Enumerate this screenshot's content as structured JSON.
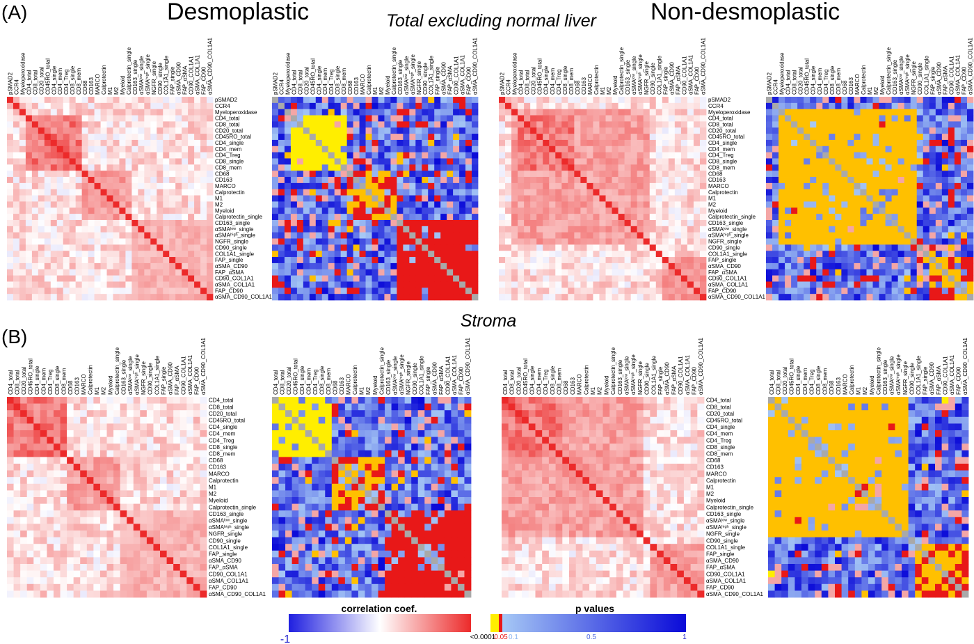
{
  "panels": {
    "a_label": "(A)",
    "b_label": "(B)",
    "desmoplastic_title": "Desmoplastic",
    "nondesmoplastic_title": "Non-desmoplastic",
    "a_subtitle": "Total excluding normal liver",
    "b_subtitle": "Stroma"
  },
  "colors": {
    "corr_negative": "#1f1fe0",
    "corr_zero": "#ffffff",
    "corr_positive": "#ec2a2a",
    "p_min": "#ffee00",
    "p_mid": "#e81818",
    "p_low": "#a6c8f5",
    "p_max": "#0a0ad8",
    "diagonal_p": "#a9a9a9"
  },
  "legend": {
    "corr_title": "correlation coef.",
    "corr_min_label": "-1",
    "p_title": "p values",
    "p_tick_labels": [
      "<0.0001",
      "0.05",
      "0.1",
      "0.5",
      "1"
    ]
  },
  "chart_data": [
    {
      "type": "heatmap",
      "panel": "A",
      "subtitle": "Total excluding normal liver",
      "group": "Desmoplastic",
      "metric": "correlation coef.",
      "value_range": [
        -1,
        1
      ],
      "variables": [
        "pSMAD2",
        "CCR4",
        "Myeloperoxidase",
        "CD4_total",
        "CD8_total",
        "CD20_total",
        "CD45RO_total",
        "CD4_single",
        "CD4_mem",
        "CD4_Treg",
        "CD8_single",
        "CD8_mem",
        "CD68",
        "CD163",
        "MARCO",
        "Calprotectin",
        "M1",
        "M2",
        "Myeloid",
        "Calprotectin_single",
        "CD163_single",
        "αSMAlow_single",
        "αSMAhigh_single",
        "NGFR_single",
        "CD90_single",
        "COL1A1_single",
        "FAP_single",
        "αSMA_CD90",
        "FAP_αSMA",
        "CD90_COL1A1",
        "αSMA_COL1A1",
        "FAP_CD90",
        "αSMA_CD90_COL1A1"
      ],
      "blocks": [
        {
          "rows": [
            3,
            11
          ],
          "cols": [
            3,
            11
          ],
          "approx_value": 0.7
        },
        {
          "rows": [
            12,
            19
          ],
          "cols": [
            12,
            19
          ],
          "approx_value": 0.5
        },
        {
          "rows": [
            20,
            32
          ],
          "cols": [
            20,
            32
          ],
          "approx_value": 0.4
        }
      ]
    },
    {
      "type": "heatmap",
      "panel": "A",
      "subtitle": "Total excluding normal liver",
      "group": "Desmoplastic",
      "metric": "p values",
      "value_range": [
        0,
        1
      ],
      "variables": [
        "pSMAD2",
        "CCR4",
        "Myeloperoxidase",
        "CD4_total",
        "CD8_total",
        "CD20_total",
        "CD45RO_total",
        "CD4_single",
        "CD4_mem",
        "CD4_Treg",
        "CD8_single",
        "CD8_mem",
        "CD68",
        "CD163",
        "MARCO",
        "Calprotectin",
        "M1",
        "M2",
        "Myeloid",
        "Calprotectin_single",
        "CD163_single",
        "αSMAlow_single",
        "αSMAhigh_single",
        "NGFR_single",
        "CD90_single",
        "COL1A1_single",
        "FAP_single",
        "αSMA_CD90",
        "FAP_αSMA",
        "CD90_COL1A1",
        "αSMA_COL1A1",
        "FAP_CD90",
        "αSMA_CD90_COL1A1"
      ],
      "blocks": [
        {
          "rows": [
            3,
            11
          ],
          "cols": [
            3,
            11
          ],
          "approx_value": 0.0001
        },
        {
          "rows": [
            12,
            19
          ],
          "cols": [
            12,
            19
          ],
          "approx_value": 0.01
        },
        {
          "rows": [
            20,
            32
          ],
          "cols": [
            20,
            32
          ],
          "approx_value": 0.02
        }
      ]
    },
    {
      "type": "heatmap",
      "panel": "A",
      "subtitle": "Total excluding normal liver",
      "group": "Non-desmoplastic",
      "metric": "correlation coef.",
      "value_range": [
        -1,
        1
      ],
      "variables": [
        "pSMAD2",
        "CCR4",
        "Myeloperoxidase",
        "CD4_total",
        "CD8_total",
        "CD20_total",
        "CD45RO_total",
        "CD4_single",
        "CD4_mem",
        "CD4_Treg",
        "CD8_single",
        "CD8_mem",
        "CD68",
        "CD163",
        "MARCO",
        "Calprotectin",
        "M1",
        "M2",
        "Myeloid",
        "Calprotectin_single",
        "CD163_single",
        "αSMAlow_single",
        "αSMAhigh_single",
        "NGFR_single",
        "CD90_single",
        "COL1A1_single",
        "FAP_single",
        "αSMA_CD90",
        "FAP_αSMA",
        "CD90_COL1A1",
        "αSMA_COL1A1",
        "FAP_CD90",
        "αSMA_CD90_COL1A1"
      ],
      "blocks": [
        {
          "rows": [
            2,
            23
          ],
          "cols": [
            2,
            23
          ],
          "approx_value": 0.5
        },
        {
          "rows": [
            3,
            11
          ],
          "cols": [
            3,
            11
          ],
          "approx_value": 0.7
        },
        {
          "rows": [
            26,
            32
          ],
          "cols": [
            26,
            32
          ],
          "approx_value": 0.5
        }
      ]
    },
    {
      "type": "heatmap",
      "panel": "A",
      "subtitle": "Total excluding normal liver",
      "group": "Non-desmoplastic",
      "metric": "p values",
      "value_range": [
        0,
        1
      ],
      "variables": [
        "pSMAD2",
        "CCR4",
        "Myeloperoxidase",
        "CD4_total",
        "CD8_total",
        "CD20_total",
        "CD45RO_total",
        "CD4_single",
        "CD4_mem",
        "CD4_Treg",
        "CD8_single",
        "CD8_mem",
        "CD68",
        "CD163",
        "MARCO",
        "Calprotectin",
        "M1",
        "M2",
        "Myeloid",
        "Calprotectin_single",
        "CD163_single",
        "αSMAlow_single",
        "αSMAhigh_single",
        "NGFR_single",
        "CD90_single",
        "COL1A1_single",
        "FAP_single",
        "αSMA_CD90",
        "FAP_αSMA",
        "CD90_COL1A1",
        "αSMA_COL1A1",
        "FAP_CD90",
        "αSMA_CD90_COL1A1"
      ],
      "blocks": [
        {
          "rows": [
            2,
            23
          ],
          "cols": [
            2,
            23
          ],
          "approx_value": 0.001
        },
        {
          "rows": [
            26,
            32
          ],
          "cols": [
            26,
            32
          ],
          "approx_value": 0.01
        }
      ]
    },
    {
      "type": "heatmap",
      "panel": "B",
      "subtitle": "Stroma",
      "group": "Desmoplastic",
      "metric": "correlation coef.",
      "value_range": [
        -1,
        1
      ],
      "variables": [
        "CD4_total",
        "CD8_total",
        "CD20_total",
        "CD45RO_total",
        "CD4_single",
        "CD4_mem",
        "CD4_Treg",
        "CD8_single",
        "CD8_mem",
        "CD68",
        "CD163",
        "MARCO",
        "Calprotectin",
        "M1",
        "M2",
        "Myeloid",
        "Calprotectin_single",
        "CD163_single",
        "αSMAlow_single",
        "αSMAhigh_single",
        "NGFR_single",
        "CD90_single",
        "COL1A1_single",
        "FAP_single",
        "αSMA_CD90",
        "FAP_αSMA",
        "CD90_COL1A1",
        "αSMA_COL1A1",
        "FAP_CD90",
        "αSMA_CD90_COL1A1"
      ],
      "blocks": [
        {
          "rows": [
            0,
            8
          ],
          "cols": [
            0,
            8
          ],
          "approx_value": 0.7
        },
        {
          "rows": [
            9,
            16
          ],
          "cols": [
            9,
            16
          ],
          "approx_value": 0.5
        },
        {
          "rows": [
            17,
            29
          ],
          "cols": [
            17,
            29
          ],
          "approx_value": 0.4
        }
      ]
    },
    {
      "type": "heatmap",
      "panel": "B",
      "subtitle": "Stroma",
      "group": "Desmoplastic",
      "metric": "p values",
      "value_range": [
        0,
        1
      ],
      "variables": [
        "CD4_total",
        "CD8_total",
        "CD20_total",
        "CD45RO_total",
        "CD4_single",
        "CD4_mem",
        "CD4_Treg",
        "CD8_single",
        "CD8_mem",
        "CD68",
        "CD163",
        "MARCO",
        "Calprotectin",
        "M1",
        "M2",
        "Myeloid",
        "Calprotectin_single",
        "CD163_single",
        "αSMAlow_single",
        "αSMAhigh_single",
        "NGFR_single",
        "CD90_single",
        "COL1A1_single",
        "FAP_single",
        "αSMA_CD90",
        "FAP_αSMA",
        "CD90_COL1A1",
        "αSMA_COL1A1",
        "FAP_CD90",
        "αSMA_CD90_COL1A1"
      ],
      "blocks": [
        {
          "rows": [
            0,
            8
          ],
          "cols": [
            0,
            8
          ],
          "approx_value": 0.0001
        },
        {
          "rows": [
            9,
            16
          ],
          "cols": [
            9,
            16
          ],
          "approx_value": 0.01
        },
        {
          "rows": [
            17,
            29
          ],
          "cols": [
            17,
            29
          ],
          "approx_value": 0.02
        }
      ]
    },
    {
      "type": "heatmap",
      "panel": "B",
      "subtitle": "Stroma",
      "group": "Non-desmoplastic",
      "metric": "correlation coef.",
      "value_range": [
        -1,
        1
      ],
      "variables": [
        "CD4_total",
        "CD8_total",
        "CD20_total",
        "CD45RO_total",
        "CD4_single",
        "CD4_mem",
        "CD4_Treg",
        "CD8_single",
        "CD8_mem",
        "CD68",
        "CD163",
        "MARCO",
        "Calprotectin",
        "M1",
        "M2",
        "Myeloid",
        "Calprotectin_single",
        "CD163_single",
        "αSMAlow_single",
        "αSMAhigh_single",
        "NGFR_single",
        "CD90_single",
        "COL1A1_single",
        "FAP_single",
        "αSMA_CD90",
        "FAP_αSMA",
        "CD90_COL1A1",
        "αSMA_COL1A1",
        "FAP_CD90",
        "αSMA_CD90_COL1A1"
      ],
      "blocks": [
        {
          "rows": [
            0,
            20
          ],
          "cols": [
            0,
            20
          ],
          "approx_value": 0.5
        },
        {
          "rows": [
            0,
            8
          ],
          "cols": [
            0,
            8
          ],
          "approx_value": 0.7
        },
        {
          "rows": [
            22,
            29
          ],
          "cols": [
            22,
            29
          ],
          "approx_value": 0.5
        }
      ]
    },
    {
      "type": "heatmap",
      "panel": "B",
      "subtitle": "Stroma",
      "group": "Non-desmoplastic",
      "metric": "p values",
      "value_range": [
        0,
        1
      ],
      "variables": [
        "CD4_total",
        "CD8_total",
        "CD20_total",
        "CD45RO_total",
        "CD4_single",
        "CD4_mem",
        "CD4_Treg",
        "CD8_single",
        "CD8_mem",
        "CD68",
        "CD163",
        "MARCO",
        "Calprotectin",
        "M1",
        "M2",
        "Myeloid",
        "Calprotectin_single",
        "CD163_single",
        "αSMAlow_single",
        "αSMAhigh_single",
        "NGFR_single",
        "CD90_single",
        "COL1A1_single",
        "FAP_single",
        "αSMA_CD90",
        "FAP_αSMA",
        "CD90_COL1A1",
        "αSMA_COL1A1",
        "FAP_CD90",
        "αSMA_CD90_COL1A1"
      ],
      "blocks": [
        {
          "rows": [
            0,
            20
          ],
          "cols": [
            0,
            20
          ],
          "approx_value": 0.001
        },
        {
          "rows": [
            22,
            29
          ],
          "cols": [
            22,
            29
          ],
          "approx_value": 0.01
        }
      ]
    }
  ]
}
